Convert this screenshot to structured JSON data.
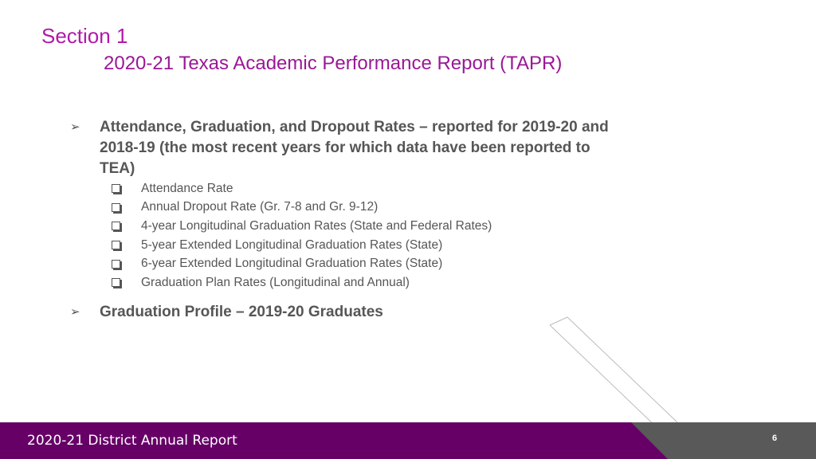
{
  "header": {
    "section_title": "Section 1",
    "subtitle": "2020-21 Texas Academic Performance Report (TAPR)"
  },
  "bullets": [
    {
      "text_line1": "Attendance, Graduation, and Dropout Rates – reported for 2019-20 and",
      "text_line2": "2018-19 (the most recent years for which data have been reported to",
      "text_line3": "TEA)",
      "sub_items": [
        "Attendance Rate",
        "Annual Dropout Rate (Gr. 7-8 and Gr. 9-12)",
        "4-year Longitudinal Graduation Rates (State and Federal Rates)",
        "5-year Extended Longitudinal Graduation Rates (State)",
        "6-year Extended Longitudinal Graduation Rates (State)",
        "Graduation Plan Rates (Longitudinal and Annual)"
      ]
    },
    {
      "text_line1": "Graduation Profile – 2019-20 Graduates"
    }
  ],
  "footer": {
    "report_title": "2020-21 District Annual Report",
    "page_number": "6"
  },
  "colors": {
    "title": "#b01aa8",
    "footer_purple": "#660066",
    "footer_grey": "#595959",
    "body_text": "#565656"
  },
  "icons": {
    "main_bullet": "arrow-bullet-icon",
    "sub_bullet": "checkbox-bullet-icon"
  }
}
